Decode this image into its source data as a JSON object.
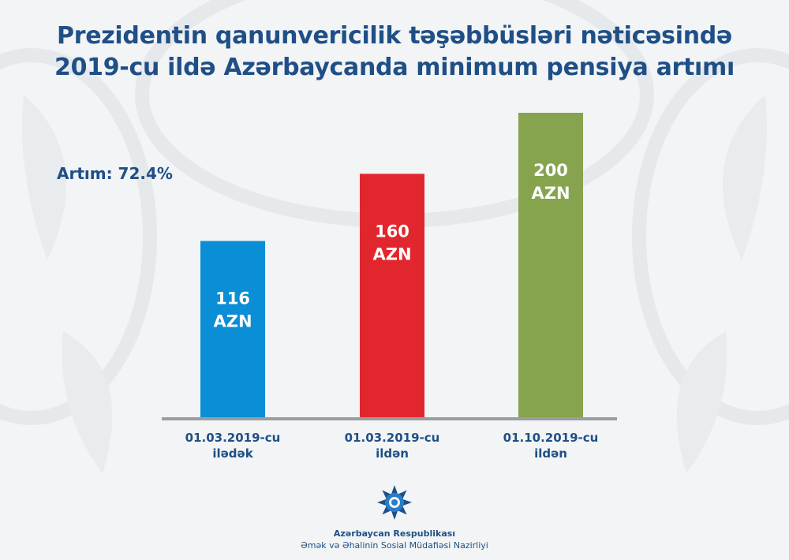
{
  "title_lines": [
    "Prezidentin qanunvericilik təşəbbüsləri nəticəsində",
    "2019-cu ildə Azərbaycanda minimum pensiya artımı"
  ],
  "growth_label": "Artım: 72.4%",
  "chart_data": {
    "type": "bar",
    "categories": [
      [
        "01.03.2019-cu",
        "ilədək"
      ],
      [
        "01.03.2019-cu",
        "ildən"
      ],
      [
        "01.10.2019-cu",
        "ildən"
      ]
    ],
    "values": [
      116,
      160,
      200
    ],
    "unit": "AZN",
    "data_labels": [
      [
        "116",
        "AZN"
      ],
      [
        "160",
        "AZN"
      ],
      [
        "200",
        "AZN"
      ]
    ],
    "colors": [
      "#0a8ed6",
      "#e2262d",
      "#86a34e"
    ],
    "ylim": [
      0,
      200
    ],
    "grid": false,
    "axis_line_color": "#9a9ea2"
  },
  "footer": {
    "line1": "Azərbaycan Respublikası",
    "line2": "Əmək və Əhalinin Sosial Müdafiəsi Nazirliyi"
  },
  "logo_icon": "ministry-emblem-icon"
}
